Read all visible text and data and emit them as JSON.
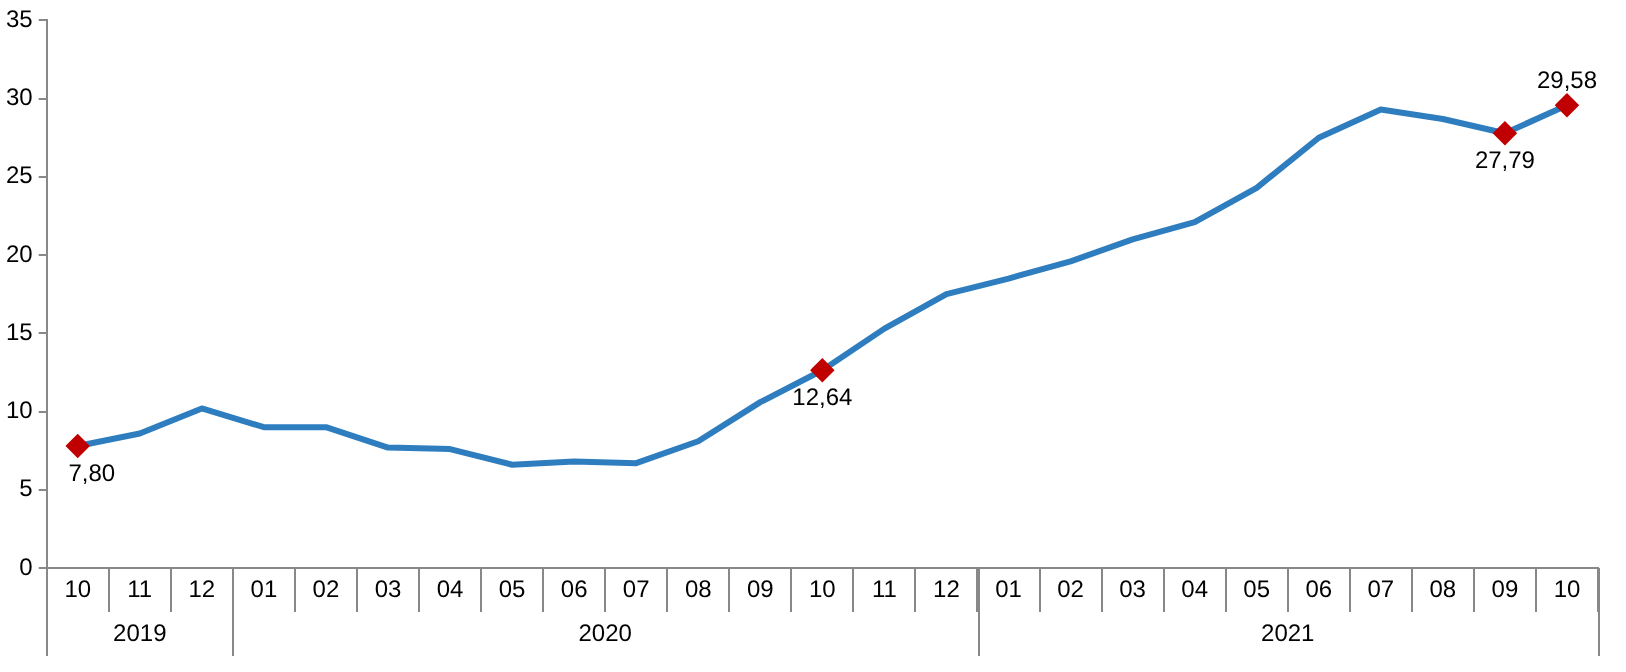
{
  "chart_data": {
    "type": "line",
    "categories": [
      "10",
      "11",
      "12",
      "01",
      "02",
      "03",
      "04",
      "05",
      "06",
      "07",
      "08",
      "09",
      "10",
      "11",
      "12",
      "01",
      "02",
      "03",
      "04",
      "05",
      "06",
      "07",
      "08",
      "09",
      "10"
    ],
    "series": [
      {
        "color": "#2e7ebf",
        "values": [
          7.8,
          8.6,
          10.2,
          9.0,
          9.0,
          7.7,
          7.6,
          6.6,
          6.8,
          6.7,
          8.1,
          10.6,
          12.64,
          15.3,
          17.5,
          18.5,
          19.6,
          21.0,
          22.1,
          24.3,
          27.5,
          29.3,
          28.7,
          27.79,
          29.58
        ],
        "value_labels": [
          "7,80",
          null,
          null,
          null,
          null,
          null,
          null,
          null,
          null,
          null,
          null,
          null,
          "12,64",
          null,
          null,
          null,
          null,
          null,
          null,
          null,
          null,
          null,
          null,
          "27,79",
          "29,58"
        ]
      }
    ],
    "annotations": [
      "2019",
      "2020",
      "2021"
    ],
    "ylim": [
      0,
      35
    ],
    "yticks": [
      0,
      5,
      10,
      15,
      20,
      25,
      30,
      35
    ],
    "grid": false,
    "legend": false,
    "line_style": "solid"
  }
}
